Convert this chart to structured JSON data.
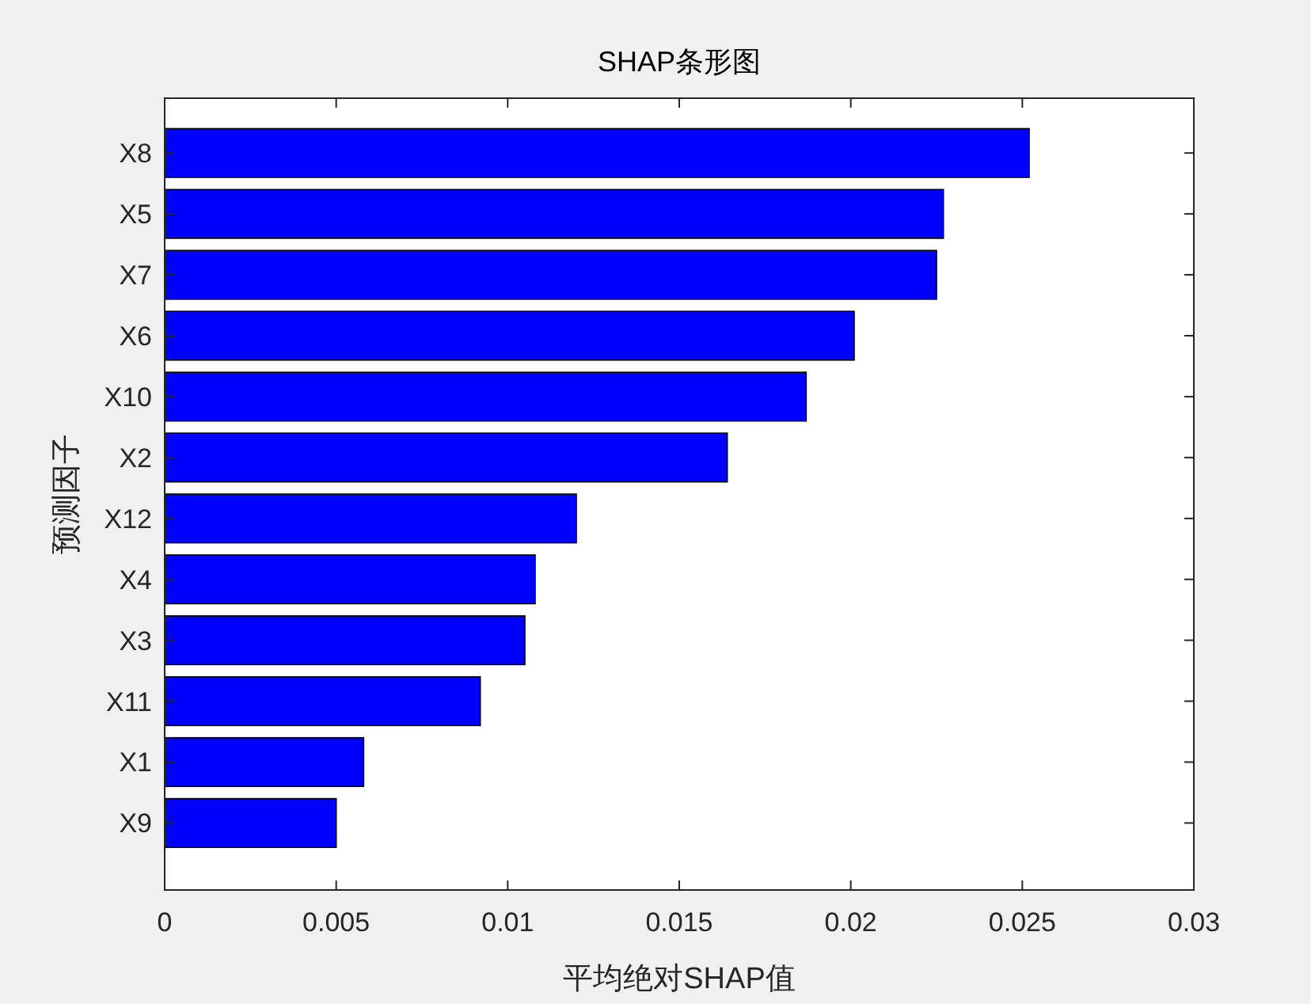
{
  "chart_data": {
    "type": "bar",
    "orientation": "horizontal",
    "title": "SHAP条形图",
    "xlabel": "平均绝对SHAP值",
    "ylabel": "预测因子",
    "categories": [
      "X8",
      "X5",
      "X7",
      "X6",
      "X10",
      "X2",
      "X12",
      "X4",
      "X3",
      "X11",
      "X1",
      "X9"
    ],
    "values": [
      0.0252,
      0.0227,
      0.0225,
      0.0201,
      0.0187,
      0.0164,
      0.012,
      0.0108,
      0.0105,
      0.0092,
      0.0058,
      0.005
    ],
    "color": "#0000ff",
    "xlim": [
      0,
      0.03
    ],
    "xticks": [
      0,
      0.005,
      0.01,
      0.015,
      0.02,
      0.025,
      0.03
    ]
  }
}
